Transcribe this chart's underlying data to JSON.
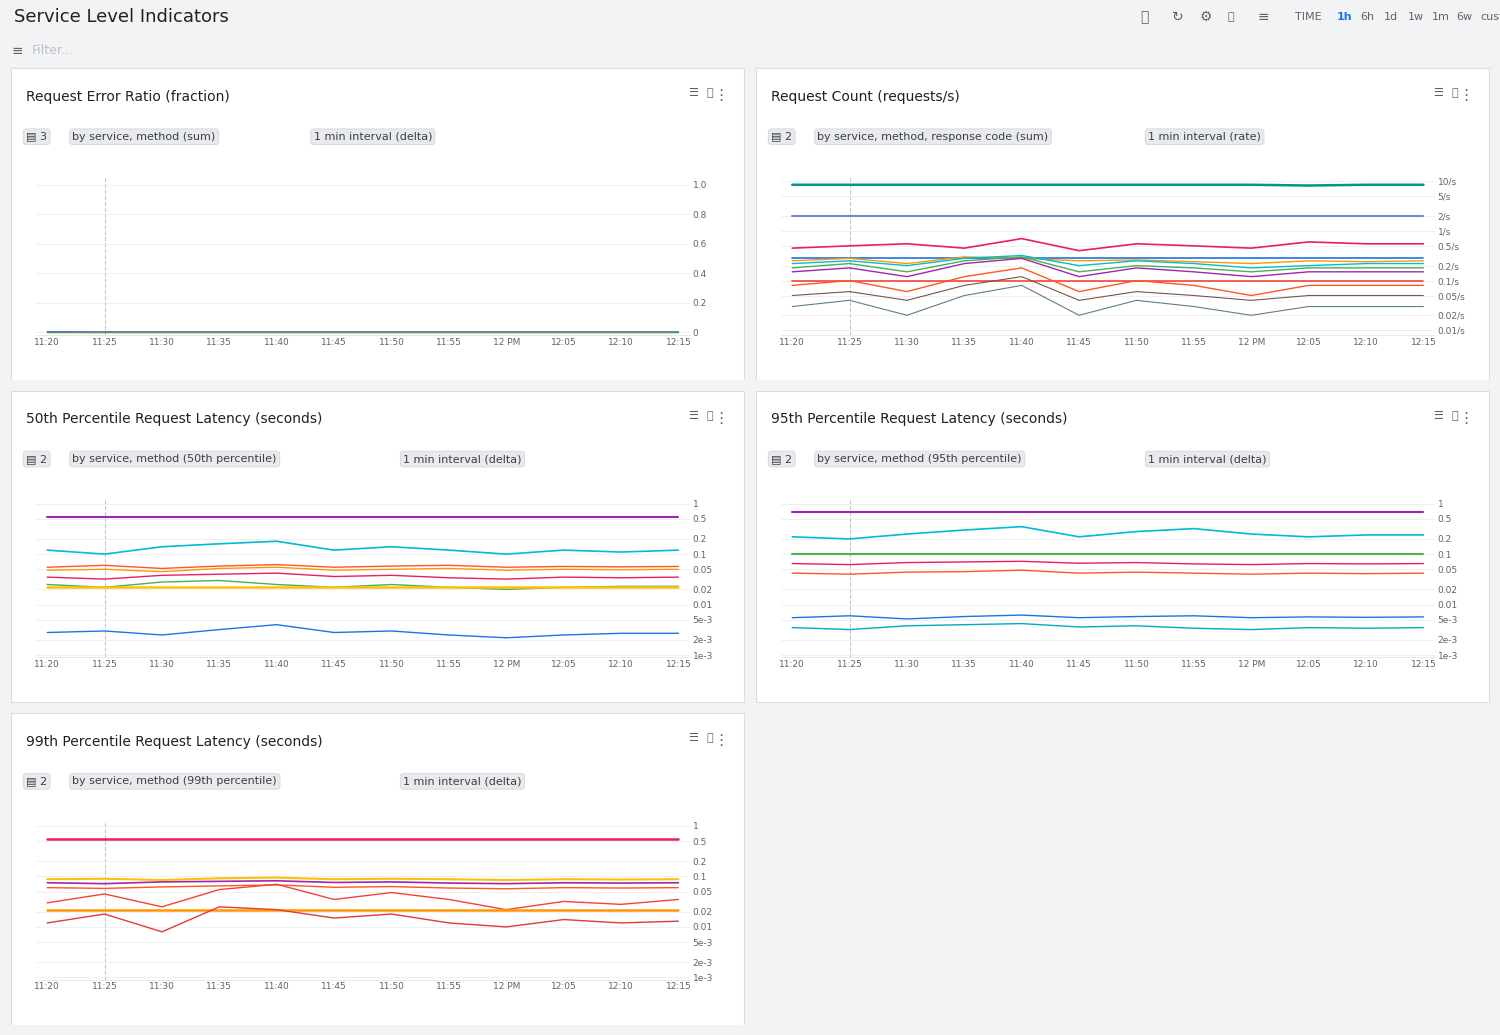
{
  "title": "Service Level Indicators",
  "bg_color": "#f1f3f4",
  "panel_bg": "#ffffff",
  "time_labels": [
    "11:20",
    "11:25",
    "11:30",
    "11:35",
    "11:40",
    "11:45",
    "11:50",
    "11:55",
    "12 PM",
    "12:05",
    "12:10",
    "12:15"
  ],
  "panels": [
    {
      "title": "Request Error Ratio (fraction)",
      "badge1": "▤ 3",
      "badge2": "by service, method (sum)",
      "badge3": "1 min interval (delta)",
      "yticks": [
        "0",
        "0.2",
        "0.4",
        "0.6",
        "0.8",
        "1.0"
      ],
      "yvals": [
        0,
        0.2,
        0.4,
        0.6,
        0.8,
        1.0
      ],
      "ylim": [
        -0.02,
        1.05
      ],
      "log": false,
      "lines": [
        {
          "color": "#1a73e8",
          "style": "-",
          "data": [
            0.002,
            0.001,
            0.001,
            0.001,
            0.001,
            0.001,
            0.001,
            0.001,
            0.001,
            0.001,
            0.001,
            0.001
          ],
          "lw": 1.0
        },
        {
          "color": "#e91e63",
          "style": "-",
          "data": [
            0.0005,
            0.0005,
            0.0005,
            0.0005,
            0.0005,
            0.0005,
            0.0005,
            0.0005,
            0.0005,
            0.0005,
            0.0005,
            0.0005
          ],
          "lw": 1.0
        },
        {
          "color": "#34a853",
          "style": "-",
          "data": [
            0.0003,
            0.0003,
            0.0003,
            0.0003,
            0.0003,
            0.0003,
            0.0003,
            0.0003,
            0.0003,
            0.0003,
            0.0003,
            0.0003
          ],
          "lw": 0.8
        }
      ]
    },
    {
      "title": "Request Count (requests/s)",
      "badge1": "▤ 2",
      "badge2": "by service, method, response code (sum)",
      "badge3": "1 min interval (rate)",
      "yticks": [
        "0.01/s",
        "0.02/s",
        "0.05/s",
        "0.1/s",
        "0.2/s",
        "0.5/s",
        "1/s",
        "2/s",
        "5/s",
        "10/s"
      ],
      "yvals": [
        0.01,
        0.02,
        0.05,
        0.1,
        0.2,
        0.5,
        1,
        2,
        5,
        10
      ],
      "ylim": [
        0.008,
        12
      ],
      "log": true,
      "lines": [
        {
          "color": "#009688",
          "style": "-",
          "data": [
            8.5,
            8.5,
            8.5,
            8.5,
            8.5,
            8.5,
            8.5,
            8.5,
            8.5,
            8.2,
            8.5,
            8.5
          ],
          "lw": 1.8
        },
        {
          "color": "#7986cb",
          "style": "-",
          "data": [
            2.0,
            2.0,
            2.0,
            2.0,
            2.0,
            2.0,
            2.0,
            2.0,
            2.0,
            2.0,
            2.0,
            2.0
          ],
          "lw": 1.5
        },
        {
          "color": "#e91e63",
          "style": "-",
          "data": [
            0.45,
            0.5,
            0.55,
            0.45,
            0.7,
            0.4,
            0.55,
            0.5,
            0.45,
            0.6,
            0.55,
            0.55
          ],
          "lw": 1.2
        },
        {
          "color": "#1a73e8",
          "style": "-",
          "data": [
            0.28,
            0.28,
            0.28,
            0.28,
            0.28,
            0.28,
            0.28,
            0.28,
            0.28,
            0.28,
            0.28,
            0.28
          ],
          "lw": 1.2
        },
        {
          "color": "#ff9800",
          "style": "-",
          "data": [
            0.25,
            0.28,
            0.22,
            0.3,
            0.28,
            0.25,
            0.26,
            0.24,
            0.22,
            0.25,
            0.24,
            0.25
          ],
          "lw": 1.0
        },
        {
          "color": "#00bcd4",
          "style": "-",
          "data": [
            0.22,
            0.25,
            0.2,
            0.28,
            0.32,
            0.2,
            0.25,
            0.22,
            0.18,
            0.2,
            0.22,
            0.22
          ],
          "lw": 1.0
        },
        {
          "color": "#4caf50",
          "style": "-",
          "data": [
            0.18,
            0.22,
            0.15,
            0.25,
            0.3,
            0.15,
            0.2,
            0.18,
            0.15,
            0.18,
            0.18,
            0.18
          ],
          "lw": 1.0
        },
        {
          "color": "#9c27b0",
          "style": "-",
          "data": [
            0.15,
            0.18,
            0.12,
            0.22,
            0.28,
            0.12,
            0.18,
            0.15,
            0.12,
            0.15,
            0.15,
            0.15
          ],
          "lw": 1.0
        },
        {
          "color": "#f44336",
          "style": "-",
          "data": [
            0.1,
            0.1,
            0.1,
            0.1,
            0.1,
            0.1,
            0.1,
            0.1,
            0.1,
            0.1,
            0.1,
            0.1
          ],
          "lw": 1.2
        },
        {
          "color": "#ff5722",
          "style": "-",
          "data": [
            0.08,
            0.1,
            0.06,
            0.12,
            0.18,
            0.06,
            0.1,
            0.08,
            0.05,
            0.08,
            0.08,
            0.08
          ],
          "lw": 1.0
        },
        {
          "color": "#795548",
          "style": "-",
          "data": [
            0.05,
            0.06,
            0.04,
            0.08,
            0.12,
            0.04,
            0.06,
            0.05,
            0.04,
            0.05,
            0.05,
            0.05
          ],
          "lw": 0.8
        },
        {
          "color": "#607d8b",
          "style": "-",
          "data": [
            0.03,
            0.04,
            0.02,
            0.05,
            0.08,
            0.02,
            0.04,
            0.03,
            0.02,
            0.03,
            0.03,
            0.03
          ],
          "lw": 0.8
        }
      ]
    },
    {
      "title": "50th Percentile Request Latency (seconds)",
      "badge1": "▤ 2",
      "badge2": "by service, method (50th percentile)",
      "badge3": "1 min interval (delta)",
      "yticks": [
        "1e-3",
        "2e-3",
        "5e-3",
        "0.01",
        "0.02",
        "0.05",
        "0.1",
        "0.2",
        "0.5",
        "1"
      ],
      "yvals": [
        0.001,
        0.002,
        0.005,
        0.01,
        0.02,
        0.05,
        0.1,
        0.2,
        0.5,
        1
      ],
      "ylim": [
        0.0009,
        1.2
      ],
      "log": true,
      "lines": [
        {
          "color": "#9c27b0",
          "style": "-",
          "data": [
            0.55,
            0.55,
            0.55,
            0.55,
            0.55,
            0.55,
            0.55,
            0.55,
            0.55,
            0.55,
            0.55,
            0.55
          ],
          "lw": 1.5
        },
        {
          "color": "#00bcd4",
          "style": "-",
          "data": [
            0.12,
            0.1,
            0.14,
            0.16,
            0.18,
            0.12,
            0.14,
            0.12,
            0.1,
            0.12,
            0.11,
            0.12
          ],
          "lw": 1.2
        },
        {
          "color": "#ff5722",
          "style": "-",
          "data": [
            0.055,
            0.06,
            0.052,
            0.058,
            0.062,
            0.055,
            0.058,
            0.06,
            0.055,
            0.057,
            0.056,
            0.057
          ],
          "lw": 1.0
        },
        {
          "color": "#ff9800",
          "style": "-",
          "data": [
            0.048,
            0.05,
            0.045,
            0.052,
            0.055,
            0.048,
            0.05,
            0.052,
            0.048,
            0.05,
            0.049,
            0.05
          ],
          "lw": 1.0
        },
        {
          "color": "#e91e63",
          "style": "-",
          "data": [
            0.035,
            0.032,
            0.038,
            0.04,
            0.042,
            0.036,
            0.038,
            0.034,
            0.032,
            0.035,
            0.034,
            0.035
          ],
          "lw": 1.0
        },
        {
          "color": "#4caf50",
          "style": "-",
          "data": [
            0.025,
            0.022,
            0.028,
            0.03,
            0.025,
            0.022,
            0.025,
            0.022,
            0.02,
            0.022,
            0.023,
            0.023
          ],
          "lw": 1.0
        },
        {
          "color": "#ffc107",
          "style": "-",
          "data": [
            0.022,
            0.022,
            0.022,
            0.022,
            0.022,
            0.022,
            0.022,
            0.022,
            0.022,
            0.022,
            0.022,
            0.022
          ],
          "lw": 1.8
        },
        {
          "color": "#1a73e8",
          "style": "-",
          "data": [
            0.0028,
            0.003,
            0.0025,
            0.0032,
            0.004,
            0.0028,
            0.003,
            0.0025,
            0.0022,
            0.0025,
            0.0027,
            0.0027
          ],
          "lw": 1.0
        }
      ]
    },
    {
      "title": "95th Percentile Request Latency (seconds)",
      "badge1": "▤ 2",
      "badge2": "by service, method (95th percentile)",
      "badge3": "1 min interval (delta)",
      "yticks": [
        "1e-3",
        "2e-3",
        "5e-3",
        "0.01",
        "0.02",
        "0.05",
        "0.1",
        "0.2",
        "0.5",
        "1"
      ],
      "yvals": [
        0.001,
        0.002,
        0.005,
        0.01,
        0.02,
        0.05,
        0.1,
        0.2,
        0.5,
        1
      ],
      "ylim": [
        0.0009,
        1.2
      ],
      "log": true,
      "lines": [
        {
          "color": "#9c27b0",
          "style": "-",
          "data": [
            0.68,
            0.68,
            0.68,
            0.68,
            0.68,
            0.68,
            0.68,
            0.68,
            0.68,
            0.68,
            0.68,
            0.68
          ],
          "lw": 1.5
        },
        {
          "color": "#00bcd4",
          "style": "-",
          "data": [
            0.22,
            0.2,
            0.25,
            0.3,
            0.35,
            0.22,
            0.28,
            0.32,
            0.25,
            0.22,
            0.24,
            0.24
          ],
          "lw": 1.2
        },
        {
          "color": "#4caf50",
          "style": "-",
          "data": [
            0.1,
            0.1,
            0.1,
            0.1,
            0.1,
            0.1,
            0.1,
            0.1,
            0.1,
            0.1,
            0.1,
            0.1
          ],
          "lw": 1.5
        },
        {
          "color": "#e91e63",
          "style": "-",
          "data": [
            0.065,
            0.062,
            0.068,
            0.07,
            0.072,
            0.066,
            0.068,
            0.064,
            0.062,
            0.065,
            0.064,
            0.065
          ],
          "lw": 1.0
        },
        {
          "color": "#ff5722",
          "style": "-",
          "data": [
            0.042,
            0.04,
            0.044,
            0.045,
            0.048,
            0.042,
            0.044,
            0.042,
            0.04,
            0.042,
            0.041,
            0.042
          ],
          "lw": 1.0
        },
        {
          "color": "#1a73e8",
          "style": "-",
          "data": [
            0.0055,
            0.006,
            0.0052,
            0.0058,
            0.0062,
            0.0055,
            0.0058,
            0.006,
            0.0055,
            0.0057,
            0.0056,
            0.0057
          ],
          "lw": 1.0
        },
        {
          "color": "#00acc1",
          "style": "-",
          "data": [
            0.0035,
            0.0032,
            0.0038,
            0.004,
            0.0042,
            0.0036,
            0.0038,
            0.0034,
            0.0032,
            0.0035,
            0.0034,
            0.0035
          ],
          "lw": 1.0
        }
      ]
    },
    {
      "title": "99th Percentile Request Latency (seconds)",
      "badge1": "▤ 2",
      "badge2": "by service, method (99th percentile)",
      "badge3": "1 min interval (delta)",
      "yticks": [
        "1e-3",
        "2e-3",
        "5e-3",
        "0.01",
        "0.02",
        "0.05",
        "0.1",
        "0.2",
        "0.5",
        "1"
      ],
      "yvals": [
        0.001,
        0.002,
        0.005,
        0.01,
        0.02,
        0.05,
        0.1,
        0.2,
        0.5,
        1
      ],
      "ylim": [
        0.0009,
        1.2
      ],
      "log": true,
      "lines": [
        {
          "color": "#e91e63",
          "style": "-",
          "data": [
            0.55,
            0.55,
            0.55,
            0.55,
            0.55,
            0.55,
            0.55,
            0.55,
            0.55,
            0.55,
            0.55,
            0.55
          ],
          "lw": 1.8
        },
        {
          "color": "#ffc107",
          "style": "-",
          "data": [
            0.088,
            0.09,
            0.085,
            0.092,
            0.095,
            0.088,
            0.09,
            0.088,
            0.085,
            0.088,
            0.087,
            0.088
          ],
          "lw": 1.5
        },
        {
          "color": "#9c27b0",
          "style": "-",
          "data": [
            0.075,
            0.072,
            0.078,
            0.08,
            0.082,
            0.076,
            0.078,
            0.074,
            0.072,
            0.075,
            0.074,
            0.075
          ],
          "lw": 1.2
        },
        {
          "color": "#ff5722",
          "style": "-",
          "data": [
            0.06,
            0.058,
            0.062,
            0.065,
            0.068,
            0.061,
            0.063,
            0.059,
            0.057,
            0.06,
            0.059,
            0.06
          ],
          "lw": 1.0
        },
        {
          "color": "#f44336",
          "style": "-",
          "data": [
            0.03,
            0.045,
            0.025,
            0.055,
            0.07,
            0.035,
            0.048,
            0.035,
            0.022,
            0.032,
            0.028,
            0.035
          ],
          "lw": 1.0
        },
        {
          "color": "#ff9800",
          "style": "-",
          "data": [
            0.022,
            0.022,
            0.022,
            0.022,
            0.022,
            0.022,
            0.022,
            0.022,
            0.022,
            0.022,
            0.022,
            0.022
          ],
          "lw": 1.8
        },
        {
          "color": "#e53935",
          "style": "-",
          "data": [
            0.012,
            0.018,
            0.008,
            0.025,
            0.022,
            0.015,
            0.018,
            0.012,
            0.01,
            0.014,
            0.012,
            0.013
          ],
          "lw": 1.0
        }
      ]
    }
  ]
}
